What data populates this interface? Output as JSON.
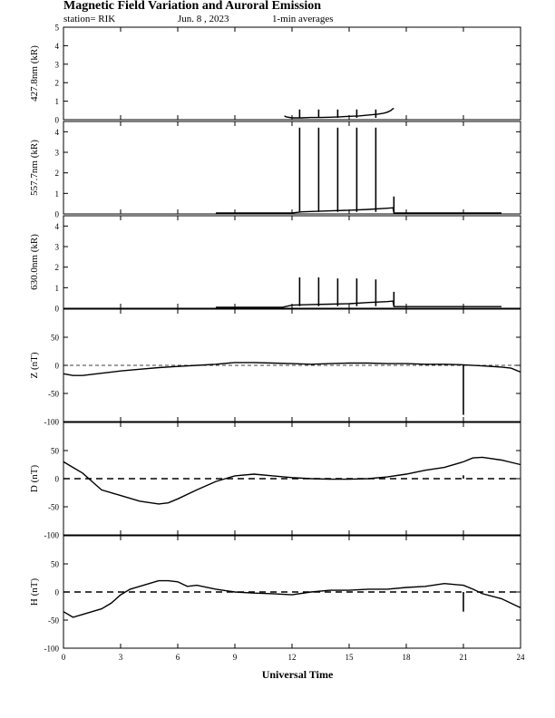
{
  "header": {
    "title": "Magnetic Field Variation and Auroral Emission",
    "station": "station= RIK",
    "date": "Jun. 8 , 2023",
    "averaging": "1-min averages"
  },
  "chart_data": {
    "type": "line",
    "xlabel": "Universal Time",
    "xlim": [
      0,
      24
    ],
    "xticks": [
      "0",
      "3",
      "6",
      "9",
      "12",
      "15",
      "18",
      "21",
      "24"
    ],
    "panels": [
      {
        "id": "p4278",
        "ylabel": "427.8nm (kR)",
        "ylim": [
          0,
          5
        ],
        "yticks": [
          "0",
          "1",
          "2",
          "3",
          "4",
          "5"
        ],
        "zero_line": false,
        "series": [
          {
            "x": [
              11.6,
              11.7,
              12.0,
              12.5,
              13.0,
              13.5,
              14.0,
              14.5,
              15.0,
              15.5,
              16.0,
              16.5,
              16.8,
              17.0,
              17.2,
              17.3,
              17.35
            ],
            "y": [
              0.2,
              0.15,
              0.1,
              0.1,
              0.12,
              0.12,
              0.13,
              0.15,
              0.18,
              0.2,
              0.25,
              0.3,
              0.35,
              0.4,
              0.5,
              0.6,
              0.6
            ]
          }
        ],
        "spikes": [
          {
            "x": 12.4,
            "y": 0.55
          },
          {
            "x": 13.4,
            "y": 0.55
          },
          {
            "x": 14.4,
            "y": 0.55
          },
          {
            "x": 15.4,
            "y": 0.55
          },
          {
            "x": 16.4,
            "y": 0.55
          }
        ]
      },
      {
        "id": "p5577",
        "ylabel": "557.7nm (kR)",
        "ylim": [
          0,
          4.5
        ],
        "yticks": [
          "0",
          "1",
          "2",
          "3",
          "4"
        ],
        "zero_line": false,
        "series": [
          {
            "x": [
              8.0,
              12.0,
              12.5,
              13.0,
              14.0,
              15.0,
              16.0,
              17.0,
              17.3,
              17.35,
              18.0,
              20.0,
              22.0,
              23.0
            ],
            "y": [
              0.05,
              0.05,
              0.1,
              0.12,
              0.15,
              0.18,
              0.22,
              0.28,
              0.3,
              0.05,
              0.05,
              0.05,
              0.05,
              0.05
            ]
          }
        ],
        "spikes": [
          {
            "x": 12.4,
            "y": 4.2
          },
          {
            "x": 13.4,
            "y": 4.2
          },
          {
            "x": 14.4,
            "y": 4.2
          },
          {
            "x": 15.4,
            "y": 4.2
          },
          {
            "x": 16.4,
            "y": 4.2
          },
          {
            "x": 17.35,
            "y": 0.85
          }
        ]
      },
      {
        "id": "p6300",
        "ylabel": "630.0nm (kR)",
        "ylim": [
          0,
          4.5
        ],
        "yticks": [
          "0",
          "1",
          "2",
          "3",
          "4"
        ],
        "zero_line": false,
        "series": [
          {
            "x": [
              8.0,
              11.5,
              12.0,
              13.0,
              14.0,
              15.0,
              16.0,
              17.0,
              17.3,
              17.35,
              18.0,
              20.0,
              22.0,
              23.0
            ],
            "y": [
              0.05,
              0.05,
              0.15,
              0.18,
              0.2,
              0.22,
              0.28,
              0.32,
              0.35,
              0.08,
              0.08,
              0.08,
              0.08,
              0.08
            ]
          }
        ],
        "spikes": [
          {
            "x": 12.4,
            "y": 1.5
          },
          {
            "x": 13.4,
            "y": 1.5
          },
          {
            "x": 14.4,
            "y": 1.45
          },
          {
            "x": 15.4,
            "y": 1.45
          },
          {
            "x": 16.4,
            "y": 1.4
          },
          {
            "x": 17.35,
            "y": 0.8
          }
        ]
      },
      {
        "id": "pZ",
        "ylabel": "Z (nT)",
        "ylim": [
          -100,
          100
        ],
        "yticks": [
          "-100",
          "-50",
          "0",
          "50"
        ],
        "zero_line": true,
        "series": [
          {
            "x": [
              0,
              0.5,
              1.0,
              1.5,
              2.0,
              3.0,
              4.0,
              5.0,
              6.0,
              7.0,
              8.0,
              9.0,
              10.0,
              11.0,
              12.0,
              13.0,
              14.0,
              15.0,
              16.0,
              17.0,
              18.0,
              19.0,
              20.0,
              21.0,
              22.0,
              23.0,
              23.5,
              24.0
            ],
            "y": [
              -15,
              -18,
              -18,
              -16,
              -14,
              -10,
              -7,
              -4,
              -2,
              0,
              2,
              5,
              5,
              4,
              3,
              2,
              3,
              4,
              4,
              3,
              3,
              2,
              2,
              1,
              -1,
              -3,
              -5,
              -12
            ]
          }
        ],
        "spikes": [
          {
            "x": 21.0,
            "y": -88
          }
        ]
      },
      {
        "id": "pD",
        "ylabel": "D (nT)",
        "ylim": [
          -100,
          100
        ],
        "yticks": [
          "-100",
          "-50",
          "0",
          "50"
        ],
        "zero_line": true,
        "series": [
          {
            "x": [
              0,
              0.5,
              1.0,
              1.5,
              2.0,
              3.0,
              4.0,
              5.0,
              5.5,
              6.0,
              7.0,
              8.0,
              9.0,
              10.0,
              11.0,
              12.0,
              13.0,
              14.0,
              15.0,
              16.0,
              17.0,
              18.0,
              19.0,
              20.0,
              21.0,
              21.5,
              22.0,
              23.0,
              24.0
            ],
            "y": [
              30,
              20,
              10,
              -5,
              -20,
              -30,
              -40,
              -45,
              -43,
              -36,
              -20,
              -5,
              5,
              8,
              5,
              2,
              0,
              -1,
              -1,
              0,
              3,
              8,
              15,
              20,
              30,
              37,
              38,
              33,
              25
            ]
          }
        ],
        "spikes": [
          {
            "x": 21.0,
            "y": 6
          }
        ]
      },
      {
        "id": "pH",
        "ylabel": "H (nT)",
        "ylim": [
          -100,
          100
        ],
        "yticks": [
          "-100",
          "-50",
          "0",
          "50"
        ],
        "zero_line": true,
        "series": [
          {
            "x": [
              0,
              0.5,
              1.0,
              1.5,
              2.0,
              2.5,
              3.0,
              3.5,
              4.0,
              5.0,
              5.5,
              6.0,
              6.5,
              7.0,
              8.0,
              9.0,
              10.0,
              11.0,
              12.0,
              13.0,
              14.0,
              15.0,
              16.0,
              17.0,
              18.0,
              19.0,
              20.0,
              21.0,
              21.5,
              22.0,
              23.0,
              24.0
            ],
            "y": [
              -35,
              -45,
              -40,
              -35,
              -30,
              -20,
              -5,
              5,
              10,
              20,
              20,
              18,
              10,
              12,
              5,
              0,
              -2,
              -3,
              -5,
              0,
              3,
              3,
              5,
              5,
              8,
              10,
              15,
              12,
              5,
              -3,
              -12,
              -28
            ]
          }
        ],
        "spikes": [
          {
            "x": 21.0,
            "y": -35
          }
        ]
      }
    ]
  }
}
